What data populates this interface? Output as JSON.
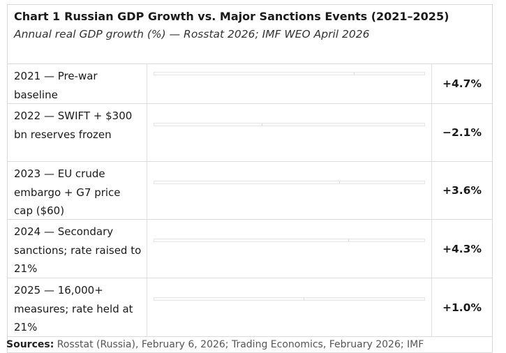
{
  "chart_data": {
    "type": "bar",
    "chart_number": "Chart 1",
    "title": "Russian GDP Growth vs. Major Sanctions Events (2021–2025)",
    "subtitle": "Annual real GDP growth (%) — Rosstat 2026; IMF WEO April 2026",
    "categories": [
      "2021 — Pre-war baseline",
      "2022 — SWIFT + $300 bn reserves frozen",
      "2023 — EU crude embargo + G7 price cap ($60)",
      "2024 — Secondary sanctions; rate raised to 21%",
      "2025 — 16,000+ measures; rate held at 21%"
    ],
    "values": [
      4.7,
      -2.1,
      3.6,
      4.3,
      1.0
    ],
    "value_labels": [
      "+4.7%",
      "−2.1%",
      "+3.6%",
      "+4.3%",
      "+1.0%"
    ],
    "footer_label": "Sources:",
    "footer_text": "Rosstat (Russia), February 6, 2026; Trading Economics, February 2026; IMF"
  },
  "colors": {
    "border": "#d8d8d8",
    "track": "#e6e6e6",
    "text": "#1a1a1a"
  }
}
